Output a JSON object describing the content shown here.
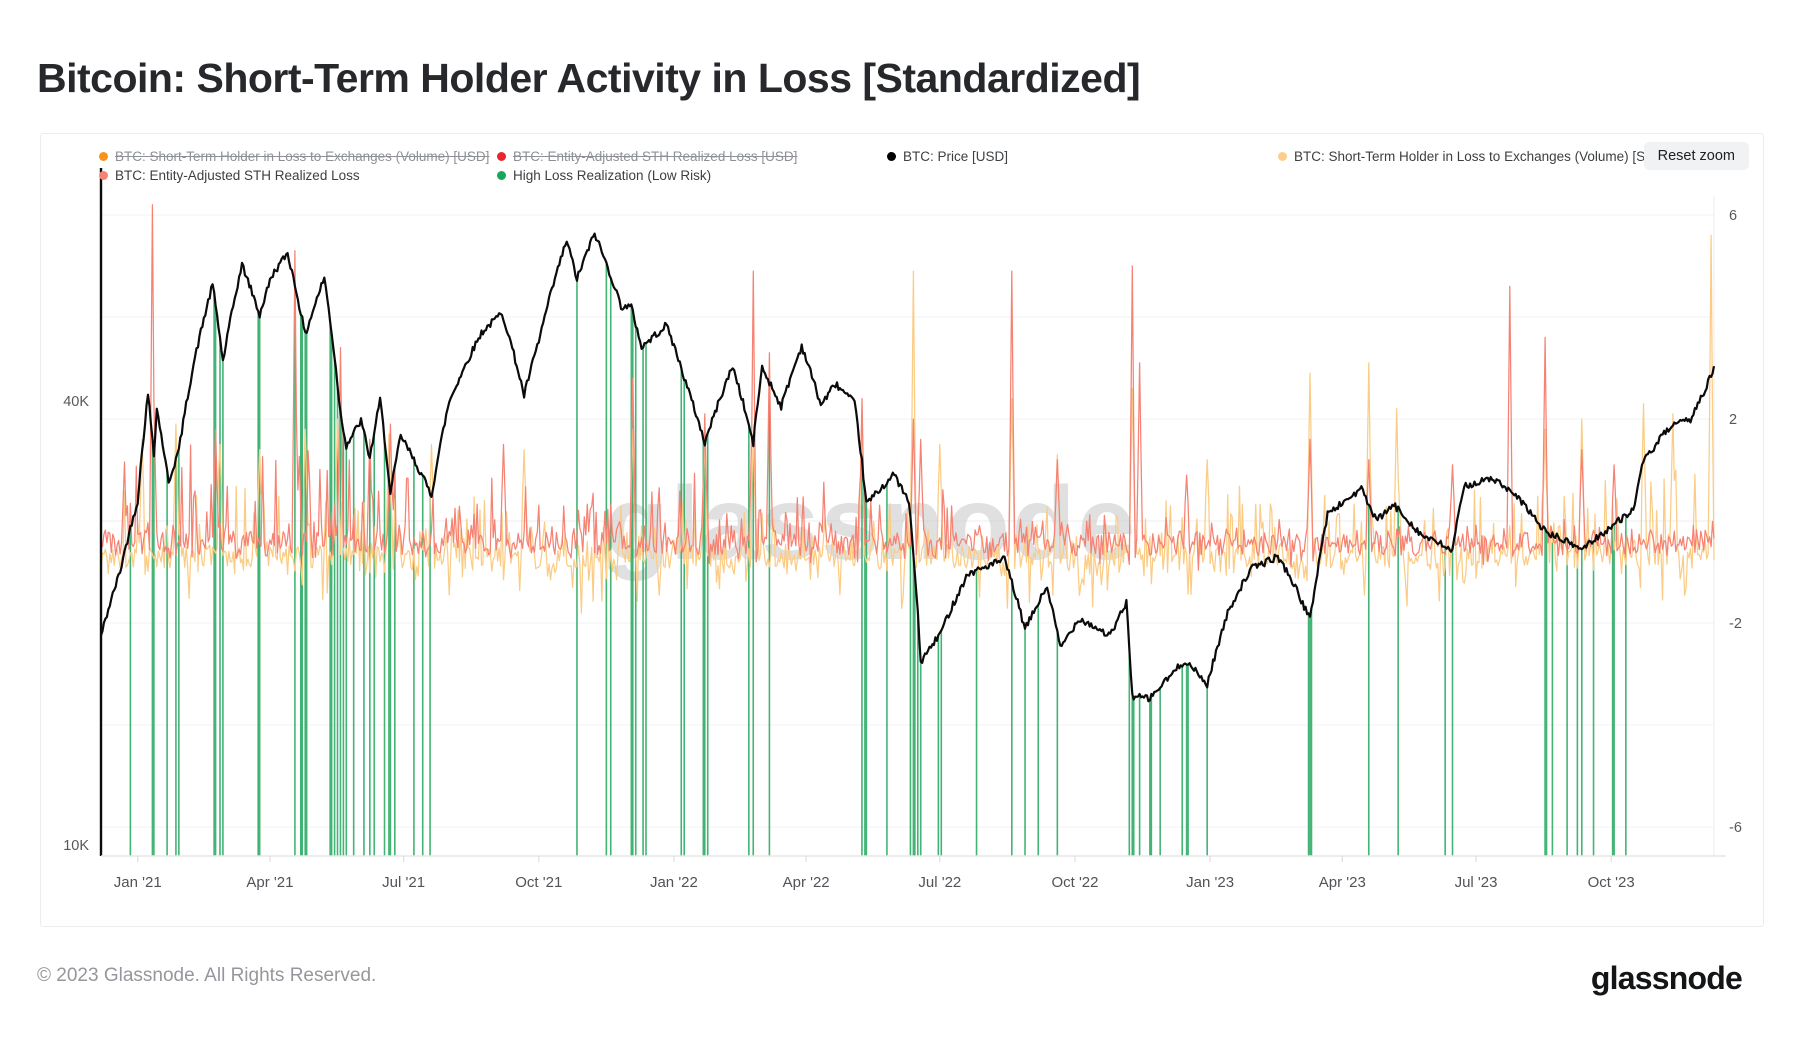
{
  "header": {
    "title": "Bitcoin: Short-Term Holder Activity in Loss [Standardized]"
  },
  "toolbar": {
    "reset_zoom_label": "Reset zoom"
  },
  "watermark": "glassnode",
  "footer": {
    "copyright": "© 2023 Glassnode. All Rights Reserved.",
    "brand": "glassnode"
  },
  "legend": {
    "items": [
      {
        "label": "BTC: Short-Term Holder in Loss to Exchanges (Volume) [USD]",
        "color": "#f7931a",
        "disabled": true,
        "row": 0,
        "col": 0
      },
      {
        "label": "BTC: Entity-Adjusted STH Realized Loss [USD]",
        "color": "#e8262d",
        "disabled": true,
        "row": 0,
        "col": 1
      },
      {
        "label": "BTC: Price [USD]",
        "color": "#000000",
        "disabled": false,
        "row": 0,
        "col": 2
      },
      {
        "label": "BTC: Short-Term Holder in Loss to Exchanges (Volume) [STD]",
        "color": "#fbcf8b",
        "disabled": false,
        "row": 0,
        "col": 3
      },
      {
        "label": "BTC: Entity-Adjusted STH Realized Loss",
        "color": "#f48576",
        "disabled": false,
        "row": 1,
        "col": 0
      },
      {
        "label": "High Loss Realization (Low Risk)",
        "color": "#16a75c",
        "disabled": false,
        "row": 1,
        "col": 1
      }
    ]
  },
  "chart_data": {
    "type": "mixed",
    "title": "Bitcoin: Short-Term Holder Activity in Loss [Standardized]",
    "time_range": {
      "start": "2020-12-07",
      "end": "2023-12-10"
    },
    "axes": {
      "left": {
        "type": "log",
        "unit": "USD",
        "ticks": [
          {
            "value": 40000,
            "label": "40K"
          },
          {
            "value": 10000,
            "label": "10K"
          }
        ]
      },
      "right": {
        "type": "linear",
        "unit": "STD",
        "range": [
          -6.6,
          6.4
        ],
        "ticks": [
          {
            "value": 6,
            "label": "6"
          },
          {
            "value": 2,
            "label": "2"
          },
          {
            "value": -2,
            "label": "-2"
          },
          {
            "value": -6,
            "label": "-6"
          }
        ],
        "gridline_values": [
          6,
          4,
          2,
          0,
          -2,
          -4,
          -6
        ]
      },
      "x": {
        "ticks": [
          {
            "date": "2021-01-01",
            "label": "Jan '21"
          },
          {
            "date": "2021-04-01",
            "label": "Apr '21"
          },
          {
            "date": "2021-07-01",
            "label": "Jul '21"
          },
          {
            "date": "2021-10-01",
            "label": "Oct '21"
          },
          {
            "date": "2022-01-01",
            "label": "Jan '22"
          },
          {
            "date": "2022-04-01",
            "label": "Apr '22"
          },
          {
            "date": "2022-07-01",
            "label": "Jul '22"
          },
          {
            "date": "2022-10-01",
            "label": "Oct '22"
          },
          {
            "date": "2023-01-01",
            "label": "Jan '23"
          },
          {
            "date": "2023-04-01",
            "label": "Apr '23"
          },
          {
            "date": "2023-07-01",
            "label": "Jul '23"
          },
          {
            "date": "2023-10-01",
            "label": "Oct '23"
          }
        ]
      }
    },
    "series": [
      {
        "name": "BTC: Price [USD]",
        "type": "line",
        "axis": "left",
        "color": "#0b0b0b",
        "width": 2.2,
        "points": [
          [
            "2020-12-07",
            19200
          ],
          [
            "2020-12-20",
            23500
          ],
          [
            "2021-01-01",
            29300
          ],
          [
            "2021-01-08",
            40800
          ],
          [
            "2021-01-12",
            34000
          ],
          [
            "2021-01-14",
            39000
          ],
          [
            "2021-01-22",
            31000
          ],
          [
            "2021-01-29",
            34300
          ],
          [
            "2021-02-08",
            44800
          ],
          [
            "2021-02-21",
            57500
          ],
          [
            "2021-02-28",
            45200
          ],
          [
            "2021-03-13",
            61200
          ],
          [
            "2021-03-25",
            52300
          ],
          [
            "2021-04-02",
            59000
          ],
          [
            "2021-04-13",
            63500
          ],
          [
            "2021-04-25",
            49100
          ],
          [
            "2021-05-08",
            58800
          ],
          [
            "2021-05-19",
            38500
          ],
          [
            "2021-05-23",
            34800
          ],
          [
            "2021-06-02",
            37600
          ],
          [
            "2021-06-08",
            33400
          ],
          [
            "2021-06-15",
            40100
          ],
          [
            "2021-06-22",
            29800
          ],
          [
            "2021-06-29",
            35900
          ],
          [
            "2021-07-20",
            29800
          ],
          [
            "2021-08-01",
            39900
          ],
          [
            "2021-08-23",
            49500
          ],
          [
            "2021-09-06",
            52700
          ],
          [
            "2021-09-21",
            40700
          ],
          [
            "2021-10-01",
            48200
          ],
          [
            "2021-10-20",
            66000
          ],
          [
            "2021-10-27",
            58500
          ],
          [
            "2021-11-08",
            67500
          ],
          [
            "2021-11-26",
            53800
          ],
          [
            "2021-12-03",
            53600
          ],
          [
            "2021-12-10",
            47300
          ],
          [
            "2021-12-27",
            50700
          ],
          [
            "2022-01-10",
            41800
          ],
          [
            "2022-01-22",
            35100
          ],
          [
            "2022-02-10",
            44600
          ],
          [
            "2022-02-24",
            35000
          ],
          [
            "2022-03-02",
            44400
          ],
          [
            "2022-03-15",
            39300
          ],
          [
            "2022-03-29",
            47500
          ],
          [
            "2022-04-11",
            39500
          ],
          [
            "2022-04-21",
            42200
          ],
          [
            "2022-05-04",
            39700
          ],
          [
            "2022-05-12",
            29000
          ],
          [
            "2022-05-31",
            31800
          ],
          [
            "2022-06-10",
            29100
          ],
          [
            "2022-06-18",
            17700
          ],
          [
            "2022-07-01",
            19300
          ],
          [
            "2022-07-20",
            23300
          ],
          [
            "2022-08-14",
            24400
          ],
          [
            "2022-08-28",
            19600
          ],
          [
            "2022-09-12",
            22400
          ],
          [
            "2022-09-21",
            18500
          ],
          [
            "2022-10-04",
            20300
          ],
          [
            "2022-10-25",
            19200
          ],
          [
            "2022-11-05",
            21300
          ],
          [
            "2022-11-09",
            15900
          ],
          [
            "2022-11-21",
            15800
          ],
          [
            "2022-12-15",
            17800
          ],
          [
            "2022-12-30",
            16500
          ],
          [
            "2023-01-14",
            20900
          ],
          [
            "2023-01-29",
            23700
          ],
          [
            "2023-02-16",
            24600
          ],
          [
            "2023-02-24",
            23200
          ],
          [
            "2023-03-10",
            20200
          ],
          [
            "2023-03-22",
            28100
          ],
          [
            "2023-04-14",
            30400
          ],
          [
            "2023-04-24",
            27500
          ],
          [
            "2023-05-06",
            28900
          ],
          [
            "2023-05-25",
            26300
          ],
          [
            "2023-06-15",
            25100
          ],
          [
            "2023-06-23",
            30700
          ],
          [
            "2023-07-13",
            31400
          ],
          [
            "2023-08-01",
            29200
          ],
          [
            "2023-08-17",
            26600
          ],
          [
            "2023-09-11",
            25200
          ],
          [
            "2023-10-01",
            27000
          ],
          [
            "2023-10-16",
            28500
          ],
          [
            "2023-10-23",
            33100
          ],
          [
            "2023-11-09",
            36700
          ],
          [
            "2023-11-24",
            37800
          ],
          [
            "2023-12-05",
            41900
          ],
          [
            "2023-12-10",
            44200
          ]
        ]
      },
      {
        "name": "BTC: Short-Term Holder in Loss to Exchanges (Volume) [STD]",
        "type": "noisy-line",
        "axis": "right",
        "color": "#fbcc86",
        "width": 1.25,
        "baseline": -0.7,
        "dip_amplitude": 1.0,
        "seed": 1337,
        "noise_envelope": [
          [
            "2020-12-07",
            1.5
          ],
          [
            "2021-07-01",
            1.2
          ],
          [
            "2022-01-01",
            1.0
          ],
          [
            "2022-07-01",
            1.1
          ],
          [
            "2023-01-01",
            1.35
          ],
          [
            "2023-09-01",
            1.6
          ]
        ],
        "spikes": [
          [
            "2021-01-04",
            1.6
          ],
          [
            "2021-01-27",
            1.9
          ],
          [
            "2021-02-26",
            1.5
          ],
          [
            "2021-03-25",
            1.4
          ],
          [
            "2021-04-25",
            1.8
          ],
          [
            "2021-05-17",
            2.0
          ],
          [
            "2021-06-21",
            1.7
          ],
          [
            "2021-07-20",
            1.5
          ],
          [
            "2021-09-21",
            1.4
          ],
          [
            "2021-12-04",
            1.8
          ],
          [
            "2022-01-22",
            1.6
          ],
          [
            "2022-02-24",
            1.7
          ],
          [
            "2022-05-09",
            2.2
          ],
          [
            "2022-06-13",
            4.9
          ],
          [
            "2022-07-01",
            1.5
          ],
          [
            "2022-08-19",
            2.4
          ],
          [
            "2022-09-19",
            1.3
          ],
          [
            "2022-11-09",
            2.6
          ],
          [
            "2022-12-30",
            1.2
          ],
          [
            "2023-03-10",
            2.9
          ],
          [
            "2023-04-19",
            3.1
          ],
          [
            "2023-05-08",
            2.2
          ],
          [
            "2023-08-17",
            1.8
          ],
          [
            "2023-09-11",
            2.0
          ],
          [
            "2023-10-23",
            2.3
          ],
          [
            "2023-11-12",
            2.1
          ],
          [
            "2023-12-08",
            5.6
          ]
        ]
      },
      {
        "name": "BTC: Entity-Adjusted STH Realized Loss",
        "type": "noisy-line",
        "axis": "right",
        "color": "#f58273",
        "width": 1.25,
        "baseline": -0.45,
        "dip_amplitude": 0.3,
        "seed": 777,
        "noise_envelope": [
          [
            "2020-12-07",
            1.8
          ],
          [
            "2021-07-01",
            1.3
          ],
          [
            "2022-01-01",
            1.2
          ],
          [
            "2022-07-15",
            0.4
          ],
          [
            "2023-01-01",
            0.35
          ]
        ],
        "spikes": [
          [
            "2021-01-11",
            6.2
          ],
          [
            "2021-02-23",
            1.8
          ],
          [
            "2021-04-18",
            5.3
          ],
          [
            "2021-05-19",
            3.4
          ],
          [
            "2021-06-08",
            1.6
          ],
          [
            "2021-06-22",
            1.9
          ],
          [
            "2021-09-07",
            1.5
          ],
          [
            "2021-12-04",
            2.8
          ],
          [
            "2022-01-22",
            2.1
          ],
          [
            "2022-02-24",
            4.9
          ],
          [
            "2022-03-07",
            3.3
          ],
          [
            "2022-05-09",
            2.4
          ],
          [
            "2022-06-13",
            2.0
          ],
          [
            "2022-06-18",
            1.6
          ],
          [
            "2022-08-19",
            4.9
          ],
          [
            "2022-09-19",
            1.2
          ],
          [
            "2022-11-09",
            5.0
          ],
          [
            "2022-11-14",
            3.1
          ],
          [
            "2022-12-16",
            0.9
          ],
          [
            "2023-03-10",
            1.6
          ],
          [
            "2023-04-19",
            1.2
          ],
          [
            "2023-06-15",
            1.1
          ],
          [
            "2023-07-24",
            4.6
          ],
          [
            "2023-08-17",
            3.6
          ],
          [
            "2023-09-11",
            1.4
          ],
          [
            "2023-10-03",
            1.1
          ]
        ]
      },
      {
        "name": "High Loss Realization (Low Risk)",
        "type": "vlines",
        "color": "#22a75d",
        "width": 1.6,
        "dates": [
          "2020-12-27",
          "2021-01-11",
          "2021-01-12",
          "2021-01-21",
          "2021-01-27",
          "2021-01-29",
          "2021-02-22",
          "2021-02-23",
          "2021-02-26",
          "2021-02-28",
          "2021-03-24",
          "2021-03-25",
          "2021-04-18",
          "2021-04-22",
          "2021-04-23",
          "2021-04-25",
          "2021-04-26",
          "2021-05-12",
          "2021-05-13",
          "2021-05-15",
          "2021-05-17",
          "2021-05-19",
          "2021-05-21",
          "2021-05-23",
          "2021-05-28",
          "2021-06-04",
          "2021-06-08",
          "2021-06-11",
          "2021-06-18",
          "2021-06-21",
          "2021-06-22",
          "2021-06-25",
          "2021-07-08",
          "2021-07-14",
          "2021-07-19",
          "2021-10-27",
          "2021-11-16",
          "2021-11-19",
          "2021-12-03",
          "2021-12-04",
          "2021-12-06",
          "2021-12-11",
          "2021-12-13",
          "2022-01-06",
          "2022-01-08",
          "2022-01-21",
          "2022-01-22",
          "2022-01-24",
          "2022-02-21",
          "2022-02-24",
          "2022-03-07",
          "2022-05-09",
          "2022-05-11",
          "2022-05-12",
          "2022-05-26",
          "2022-06-11",
          "2022-06-13",
          "2022-06-14",
          "2022-06-16",
          "2022-06-18",
          "2022-06-30",
          "2022-07-02",
          "2022-07-26",
          "2022-08-19",
          "2022-08-28",
          "2022-09-06",
          "2022-09-19",
          "2022-11-07",
          "2022-11-09",
          "2022-11-10",
          "2022-11-14",
          "2022-11-21",
          "2022-11-22",
          "2022-11-28",
          "2022-12-13",
          "2022-12-16",
          "2022-12-17",
          "2022-12-30",
          "2023-03-09",
          "2023-03-10",
          "2023-03-11",
          "2023-04-19",
          "2023-05-09",
          "2023-06-10",
          "2023-06-15",
          "2023-08-17",
          "2023-08-18",
          "2023-08-22",
          "2023-09-01",
          "2023-09-08",
          "2023-09-11",
          "2023-09-19",
          "2023-10-02",
          "2023-10-03",
          "2023-10-11"
        ]
      }
    ]
  }
}
